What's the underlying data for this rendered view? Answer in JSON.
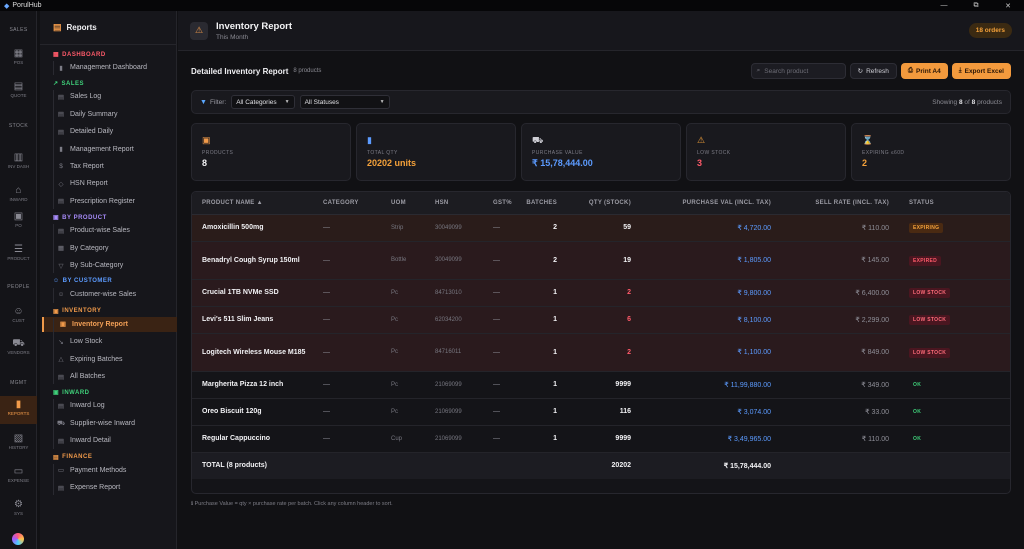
{
  "titlebar": {
    "app_name": "PorulHub",
    "minimize": "—",
    "restore": "⧉",
    "close": "✕"
  },
  "rail": {
    "sections": [
      {
        "label": "SALES"
      },
      {
        "label": "STOCK"
      },
      {
        "label": "PEOPLE"
      },
      {
        "label": "MGMT"
      }
    ],
    "items": [
      {
        "label": "POS",
        "icon": "grid-icon",
        "glyph": "▦"
      },
      {
        "label": "QUOTE",
        "icon": "document-icon",
        "glyph": "▤"
      },
      {
        "label": "INV DASH",
        "icon": "dashboard-icon",
        "glyph": "▥"
      },
      {
        "label": "INWARD",
        "icon": "inbox-icon",
        "glyph": "⌂"
      },
      {
        "label": "PO",
        "icon": "clipboard-icon",
        "glyph": "▣"
      },
      {
        "label": "PRODUCT",
        "icon": "list-icon",
        "glyph": "☰"
      },
      {
        "label": "CUST",
        "icon": "user-icon",
        "glyph": "☺"
      },
      {
        "label": "VENDORS",
        "icon": "truck-icon",
        "glyph": "⛟"
      },
      {
        "label": "REPORTS",
        "icon": "bar-chart-icon",
        "glyph": "▮"
      },
      {
        "label": "HISTORY",
        "icon": "history-icon",
        "glyph": "▧"
      },
      {
        "label": "EXPENSE",
        "icon": "wallet-icon",
        "glyph": "▭"
      },
      {
        "label": "SYS",
        "icon": "gear-icon",
        "glyph": "⚙"
      }
    ]
  },
  "sidenav": {
    "header": "Reports",
    "groups": [
      {
        "label": "DASHBOARD",
        "color": "#ff5a6a",
        "glyph": "▦",
        "items": [
          {
            "label": "Management Dashboard",
            "glyph": "▮"
          }
        ]
      },
      {
        "label": "SALES",
        "color": "#3fd07a",
        "glyph": "↗",
        "items": [
          {
            "label": "Sales Log",
            "glyph": "▤"
          },
          {
            "label": "Daily Summary",
            "glyph": "▤"
          },
          {
            "label": "Detailed Daily",
            "glyph": "▤"
          },
          {
            "label": "Management Report",
            "glyph": "▮"
          },
          {
            "label": "Tax Report",
            "glyph": "$"
          },
          {
            "label": "HSN Report",
            "glyph": "◇"
          },
          {
            "label": "Prescription Register",
            "glyph": "▤"
          }
        ]
      },
      {
        "label": "BY PRODUCT",
        "color": "#a78bfa",
        "glyph": "▣",
        "items": [
          {
            "label": "Product-wise Sales",
            "glyph": "▤"
          },
          {
            "label": "By Category",
            "glyph": "▦"
          },
          {
            "label": "By Sub-Category",
            "glyph": "▽"
          }
        ]
      },
      {
        "label": "BY CUSTOMER",
        "color": "#5c9bff",
        "glyph": "☺",
        "items": [
          {
            "label": "Customer-wise Sales",
            "glyph": "☺"
          }
        ]
      },
      {
        "label": "INVENTORY",
        "color": "#f19a4a",
        "glyph": "▣",
        "items": [
          {
            "label": "Inventory Report",
            "glyph": "▣",
            "active": true
          },
          {
            "label": "Low Stock",
            "glyph": "↘"
          },
          {
            "label": "Expiring Batches",
            "glyph": "△"
          },
          {
            "label": "All Batches",
            "glyph": "▤"
          }
        ]
      },
      {
        "label": "INWARD",
        "color": "#3fd07a",
        "glyph": "▣",
        "items": [
          {
            "label": "Inward Log",
            "glyph": "▤"
          },
          {
            "label": "Supplier-wise Inward",
            "glyph": "⛟"
          },
          {
            "label": "Inward Detail",
            "glyph": "▤"
          }
        ]
      },
      {
        "label": "FINANCE",
        "color": "#f19a4a",
        "glyph": "▤",
        "items": [
          {
            "label": "Payment Methods",
            "glyph": "▭"
          },
          {
            "label": "Expense Report",
            "glyph": "▤"
          }
        ]
      }
    ]
  },
  "topbar": {
    "title": "Inventory Report",
    "subtitle": "This Month",
    "orders_badge": "18 orders"
  },
  "toolbar": {
    "title": "Detailed Inventory Report",
    "count": "8 products",
    "search_placeholder": "Search product",
    "refresh_label": "Refresh",
    "print_label": "Print A4",
    "export_label": "Export Excel"
  },
  "filters": {
    "label": "Filter:",
    "category": "All Categories",
    "status": "All Statuses",
    "showing_prefix": "Showing",
    "showing_shown": "8",
    "showing_of": "of",
    "showing_total": "8",
    "showing_suffix": "products"
  },
  "cards": [
    {
      "label": "PRODUCTS",
      "value": "8",
      "icon": "box-icon",
      "glyph": "▣",
      "icon_color": "#f19a4a",
      "value_color": "#f2f2f5"
    },
    {
      "label": "TOTAL QTY",
      "value": "20202 units",
      "icon": "bar-chart-icon",
      "glyph": "▮",
      "icon_color": "#5c9bff",
      "value_color": "#f4a13a"
    },
    {
      "label": "PURCHASE VALUE",
      "value": "₹ 15,78,444.00",
      "icon": "cart-icon",
      "glyph": "⛟",
      "icon_color": "#cfcfd6",
      "value_color": "#5c9bff"
    },
    {
      "label": "LOW STOCK",
      "value": "3",
      "icon": "warning-icon",
      "glyph": "⚠",
      "icon_color": "#f4a13a",
      "value_color": "#ff5a6a"
    },
    {
      "label": "EXPIRING ≤60D",
      "value": "2",
      "icon": "hourglass-icon",
      "glyph": "⌛",
      "icon_color": "#e8c27a",
      "value_color": "#f4a13a"
    }
  ],
  "table": {
    "columns": [
      "PRODUCT NAME ▲",
      "CATEGORY",
      "UOM",
      "HSN",
      "GST%",
      "BATCHES",
      "QTY (STOCK)",
      "PURCHASE VAL (INCL. TAX)",
      "SELL RATE (INCL. TAX)",
      "STATUS"
    ],
    "rows": [
      {
        "name": "Amoxicillin 500mg",
        "category": "—",
        "uom": "Strip",
        "hsn": "30049099",
        "gst": "—",
        "batches": "2",
        "qty": "59",
        "qty_color": "white",
        "purchase": "₹ 4,720.00",
        "sell": "₹ 110.00",
        "status": "EXPIRING",
        "status_kind": "expiring",
        "row_kind": "exp"
      },
      {
        "name": "Benadryl Cough Syrup 150ml",
        "category": "—",
        "uom": "Bottle",
        "hsn": "30049099",
        "gst": "—",
        "batches": "2",
        "qty": "19",
        "qty_color": "white",
        "purchase": "₹ 1,805.00",
        "sell": "₹ 145.00",
        "status": "EXPIRED",
        "status_kind": "expired",
        "row_kind": "bad"
      },
      {
        "name": "Crucial 1TB NVMe SSD",
        "category": "—",
        "uom": "Pc",
        "hsn": "84713010",
        "gst": "—",
        "batches": "1",
        "qty": "2",
        "qty_color": "red",
        "purchase": "₹ 9,800.00",
        "sell": "₹ 6,400.00",
        "status": "LOW STOCK",
        "status_kind": "low",
        "row_kind": "bad"
      },
      {
        "name": "Levi's 511 Slim Jeans",
        "category": "—",
        "uom": "Pc",
        "hsn": "62034200",
        "gst": "—",
        "batches": "1",
        "qty": "6",
        "qty_color": "red",
        "purchase": "₹ 8,100.00",
        "sell": "₹ 2,299.00",
        "status": "LOW STOCK",
        "status_kind": "low",
        "row_kind": "bad"
      },
      {
        "name": "Logitech Wireless Mouse M185",
        "category": "—",
        "uom": "Pc",
        "hsn": "84716011",
        "gst": "—",
        "batches": "1",
        "qty": "2",
        "qty_color": "red",
        "purchase": "₹ 1,100.00",
        "sell": "₹ 849.00",
        "status": "LOW STOCK",
        "status_kind": "low",
        "row_kind": "bad"
      },
      {
        "name": "Margherita Pizza 12 inch",
        "category": "—",
        "uom": "Pc",
        "hsn": "21069099",
        "gst": "—",
        "batches": "1",
        "qty": "9999",
        "qty_color": "white",
        "purchase": "₹ 11,99,880.00",
        "sell": "₹ 349.00",
        "status": "OK",
        "status_kind": "ok",
        "row_kind": "ok"
      },
      {
        "name": "Oreo Biscuit 120g",
        "category": "—",
        "uom": "Pc",
        "hsn": "21069099",
        "gst": "—",
        "batches": "1",
        "qty": "116",
        "qty_color": "white",
        "purchase": "₹ 3,074.00",
        "sell": "₹ 33.00",
        "status": "OK",
        "status_kind": "ok",
        "row_kind": "ok"
      },
      {
        "name": "Regular Cappuccino",
        "category": "—",
        "uom": "Cup",
        "hsn": "21069099",
        "gst": "—",
        "batches": "1",
        "qty": "9999",
        "qty_color": "white",
        "purchase": "₹ 3,49,965.00",
        "sell": "₹ 110.00",
        "status": "OK",
        "status_kind": "ok",
        "row_kind": "ok"
      }
    ],
    "total": {
      "label": "TOTAL (8 products)",
      "qty": "20202",
      "purchase": "₹ 15,78,444.00"
    }
  },
  "footnote": "ℹ Purchase Value = qty × purchase rate per batch. Click any column header to sort."
}
